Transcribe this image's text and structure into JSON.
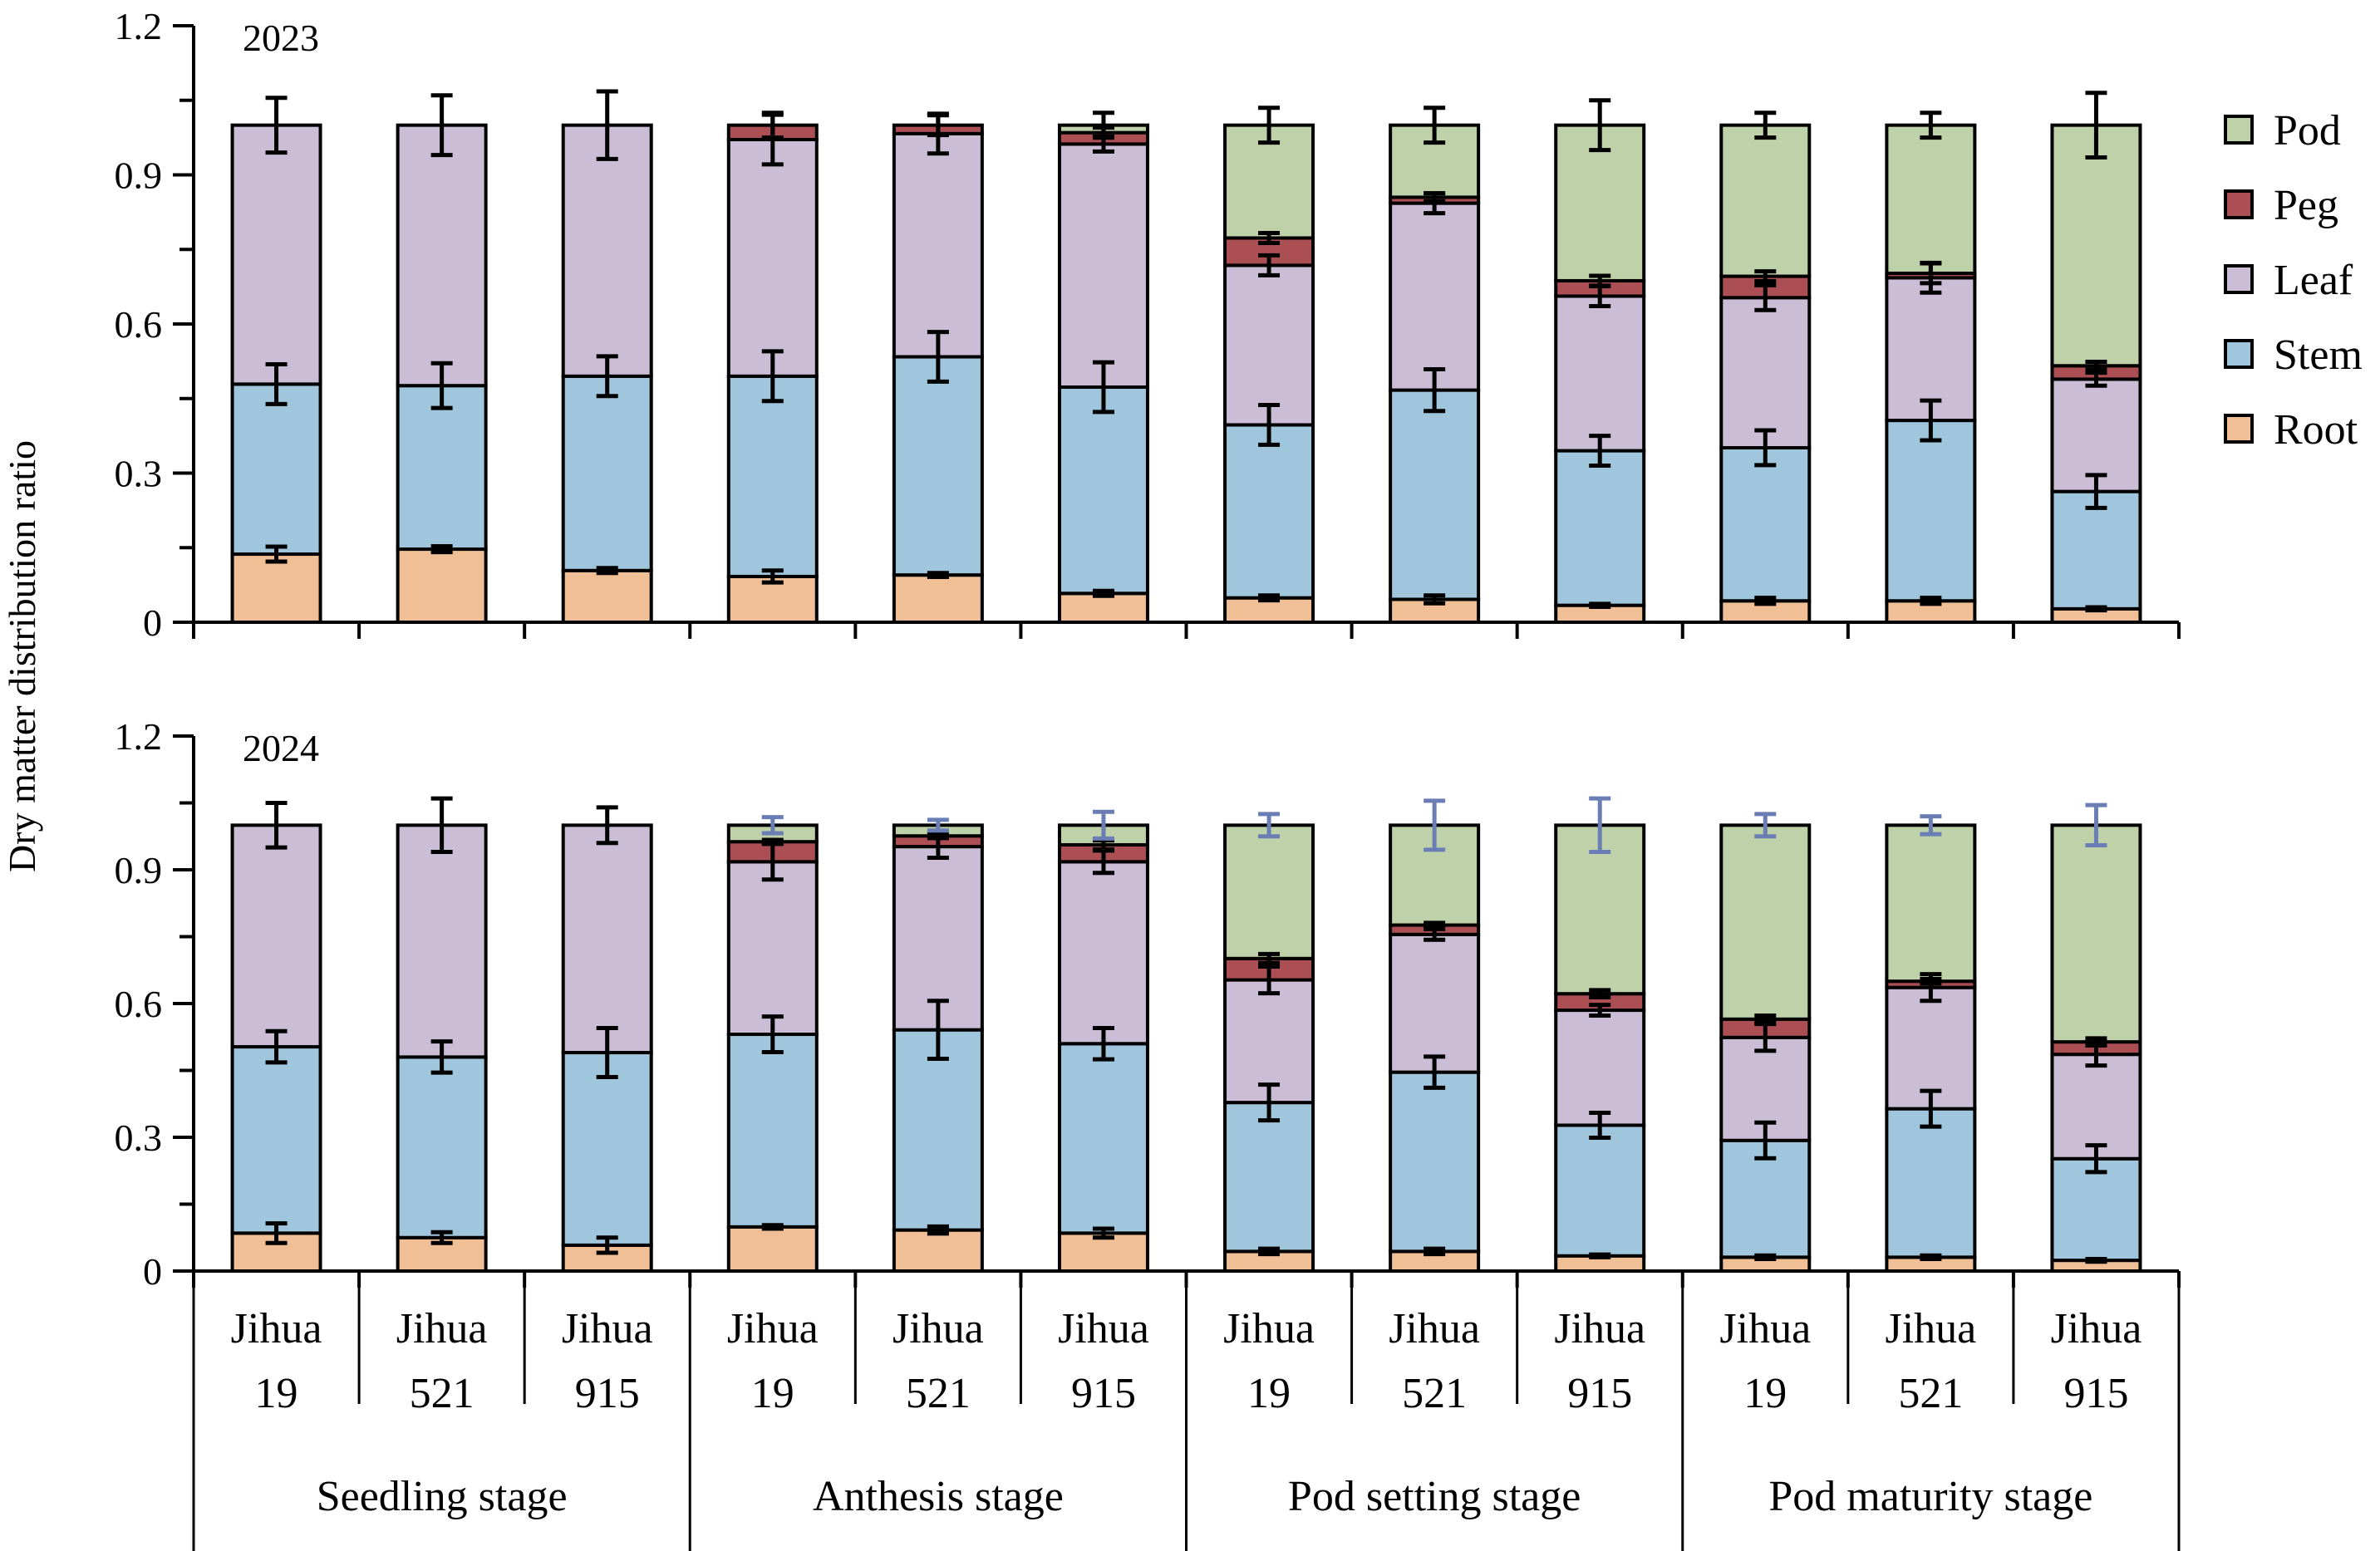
{
  "chart_data": {
    "type": "bar",
    "stacked": true,
    "ylabel": "Dry matter distribution ratio",
    "ylim": [
      0,
      1.2
    ],
    "yticks": [
      "0",
      "0.3",
      "0.6",
      "0.9",
      "1.2"
    ],
    "legend": {
      "placement": "right",
      "entries": [
        {
          "name": "Pod",
          "color": "#bfd1a8"
        },
        {
          "name": "Peg",
          "color": "#ab4f55"
        },
        {
          "name": "Leaf",
          "color": "#cbbdd6"
        },
        {
          "name": "Stem",
          "color": "#a0c6dd"
        },
        {
          "name": "Root",
          "color": "#f1bf95"
        }
      ]
    },
    "series_order": [
      "Root",
      "Stem",
      "Leaf",
      "Peg",
      "Pod"
    ],
    "groups": [
      {
        "stage": "Seedling stage",
        "cultivars": [
          [
            "Jihua",
            "19"
          ],
          [
            "Jihua",
            "521"
          ],
          [
            "Jihua",
            "915"
          ]
        ]
      },
      {
        "stage": "Anthesis stage",
        "cultivars": [
          [
            "Jihua",
            "19"
          ],
          [
            "Jihua",
            "521"
          ],
          [
            "Jihua",
            "915"
          ]
        ]
      },
      {
        "stage": "Pod setting stage",
        "cultivars": [
          [
            "Jihua",
            "19"
          ],
          [
            "Jihua",
            "521"
          ],
          [
            "Jihua",
            "915"
          ]
        ]
      },
      {
        "stage": "Pod maturity stage",
        "cultivars": [
          [
            "Jihua",
            "19"
          ],
          [
            "Jihua",
            "521"
          ],
          [
            "Jihua",
            "915"
          ]
        ]
      }
    ],
    "panels": [
      {
        "title": "2023",
        "bars": [
          {
            "Root": 0.137,
            "Stem": 0.342,
            "Leaf": 0.521,
            "Peg": 0,
            "Pod": 0,
            "err": {
              "Root": 0.015,
              "Stem": 0.04,
              "Leaf": 0.055
            }
          },
          {
            "Root": 0.147,
            "Stem": 0.329,
            "Leaf": 0.524,
            "Peg": 0,
            "Pod": 0,
            "err": {
              "Root": 0.006,
              "Stem": 0.045,
              "Leaf": 0.06
            }
          },
          {
            "Root": 0.104,
            "Stem": 0.391,
            "Leaf": 0.505,
            "Peg": 0,
            "Pod": 0,
            "err": {
              "Root": 0.005,
              "Stem": 0.04,
              "Leaf": 0.068
            }
          },
          {
            "Root": 0.092,
            "Stem": 0.403,
            "Leaf": 0.476,
            "Peg": 0.029,
            "Pod": 0,
            "err": {
              "Root": 0.012,
              "Stem": 0.05,
              "Leaf": 0.05,
              "Peg": 0.025
            }
          },
          {
            "Root": 0.095,
            "Stem": 0.439,
            "Leaf": 0.449,
            "Peg": 0.017,
            "Pod": 0,
            "err": {
              "Root": 0.004,
              "Stem": 0.05,
              "Leaf": 0.04,
              "Peg": 0.02
            }
          },
          {
            "Root": 0.058,
            "Stem": 0.415,
            "Leaf": 0.489,
            "Peg": 0.023,
            "Pod": 0.015,
            "err": {
              "Root": 0.005,
              "Stem": 0.05,
              "Leaf": 0.015,
              "Peg": 0.01,
              "Pod": 0.025
            }
          },
          {
            "Root": 0.049,
            "Stem": 0.348,
            "Leaf": 0.321,
            "Peg": 0.055,
            "Pod": 0.227,
            "err": {
              "Root": 0.005,
              "Stem": 0.04,
              "Leaf": 0.02,
              "Peg": 0.01,
              "Pod": 0.035
            }
          },
          {
            "Root": 0.046,
            "Stem": 0.421,
            "Leaf": 0.376,
            "Peg": 0.012,
            "Pod": 0.145,
            "err": {
              "Root": 0.008,
              "Stem": 0.042,
              "Leaf": 0.02,
              "Peg": 0.008,
              "Pod": 0.035
            }
          },
          {
            "Root": 0.034,
            "Stem": 0.311,
            "Leaf": 0.311,
            "Peg": 0.031,
            "Pod": 0.313,
            "err": {
              "Root": 0.003,
              "Stem": 0.03,
              "Leaf": 0.02,
              "Peg": 0.01,
              "Pod": 0.05
            }
          },
          {
            "Root": 0.043,
            "Stem": 0.308,
            "Leaf": 0.302,
            "Peg": 0.043,
            "Pod": 0.304,
            "err": {
              "Root": 0.006,
              "Stem": 0.035,
              "Leaf": 0.025,
              "Peg": 0.01,
              "Pod": 0.025
            }
          },
          {
            "Root": 0.043,
            "Stem": 0.363,
            "Leaf": 0.287,
            "Peg": 0.009,
            "Pod": 0.298,
            "err": {
              "Root": 0.006,
              "Stem": 0.04,
              "Leaf": 0.03,
              "Peg": 0.02,
              "Pod": 0.025
            }
          },
          {
            "Root": 0.027,
            "Stem": 0.236,
            "Leaf": 0.226,
            "Peg": 0.027,
            "Pod": 0.484,
            "err": {
              "Root": 0.003,
              "Stem": 0.033,
              "Leaf": 0.013,
              "Peg": 0.008,
              "Pod": 0.065
            }
          }
        ]
      },
      {
        "title": "2024",
        "bars": [
          {
            "Root": 0.085,
            "Stem": 0.418,
            "Leaf": 0.497,
            "Peg": 0,
            "Pod": 0,
            "err": {
              "Root": 0.022,
              "Stem": 0.035,
              "Leaf": 0.05
            }
          },
          {
            "Root": 0.075,
            "Stem": 0.405,
            "Leaf": 0.52,
            "Peg": 0,
            "Pod": 0,
            "err": {
              "Root": 0.012,
              "Stem": 0.035,
              "Leaf": 0.06
            }
          },
          {
            "Root": 0.058,
            "Stem": 0.432,
            "Leaf": 0.51,
            "Peg": 0,
            "Pod": 0,
            "err": {
              "Root": 0.017,
              "Stem": 0.055,
              "Leaf": 0.04
            }
          },
          {
            "Root": 0.099,
            "Stem": 0.432,
            "Leaf": 0.387,
            "Peg": 0.045,
            "Pod": 0.037,
            "err": {
              "Root": 0.004,
              "Stem": 0.04,
              "Leaf": 0.04,
              "Peg": 0.004,
              "Pod": 0.018
            }
          },
          {
            "Root": 0.092,
            "Stem": 0.449,
            "Leaf": 0.411,
            "Peg": 0.024,
            "Pod": 0.024,
            "err": {
              "Root": 0.008,
              "Stem": 0.065,
              "Leaf": 0.025,
              "Peg": 0.005,
              "Pod": 0.012
            }
          },
          {
            "Root": 0.085,
            "Stem": 0.425,
            "Leaf": 0.408,
            "Peg": 0.038,
            "Pod": 0.044,
            "err": {
              "Root": 0.01,
              "Stem": 0.035,
              "Leaf": 0.025,
              "Peg": 0.01,
              "Pod": 0.03
            }
          },
          {
            "Root": 0.044,
            "Stem": 0.334,
            "Leaf": 0.275,
            "Peg": 0.048,
            "Pod": 0.299,
            "err": {
              "Root": 0.006,
              "Stem": 0.04,
              "Leaf": 0.03,
              "Peg": 0.01,
              "Pod": 0.025
            }
          },
          {
            "Root": 0.044,
            "Stem": 0.402,
            "Leaf": 0.309,
            "Peg": 0.021,
            "Pod": 0.224,
            "err": {
              "Root": 0.006,
              "Stem": 0.035,
              "Leaf": 0.012,
              "Peg": 0.005,
              "Pod": 0.055
            }
          },
          {
            "Root": 0.034,
            "Stem": 0.293,
            "Leaf": 0.258,
            "Peg": 0.037,
            "Pod": 0.378,
            "err": {
              "Root": 0.003,
              "Stem": 0.028,
              "Leaf": 0.012,
              "Peg": 0.008,
              "Pod": 0.06
            }
          },
          {
            "Root": 0.031,
            "Stem": 0.262,
            "Leaf": 0.231,
            "Peg": 0.041,
            "Pod": 0.435,
            "err": {
              "Root": 0.004,
              "Stem": 0.04,
              "Leaf": 0.03,
              "Peg": 0.008,
              "Pod": 0.025
            }
          },
          {
            "Root": 0.031,
            "Stem": 0.333,
            "Leaf": 0.272,
            "Peg": 0.014,
            "Pod": 0.35,
            "err": {
              "Root": 0.004,
              "Stem": 0.04,
              "Leaf": 0.03,
              "Peg": 0.005,
              "Pod": 0.02
            }
          },
          {
            "Root": 0.024,
            "Stem": 0.228,
            "Leaf": 0.234,
            "Peg": 0.028,
            "Pod": 0.486,
            "err": {
              "Root": 0.003,
              "Stem": 0.03,
              "Leaf": 0.025,
              "Peg": 0.008,
              "Pod": 0.045
            }
          }
        ]
      }
    ],
    "error_bar_colors": {
      "default": "#000000",
      "pod_2024": "#6a7db5"
    }
  }
}
